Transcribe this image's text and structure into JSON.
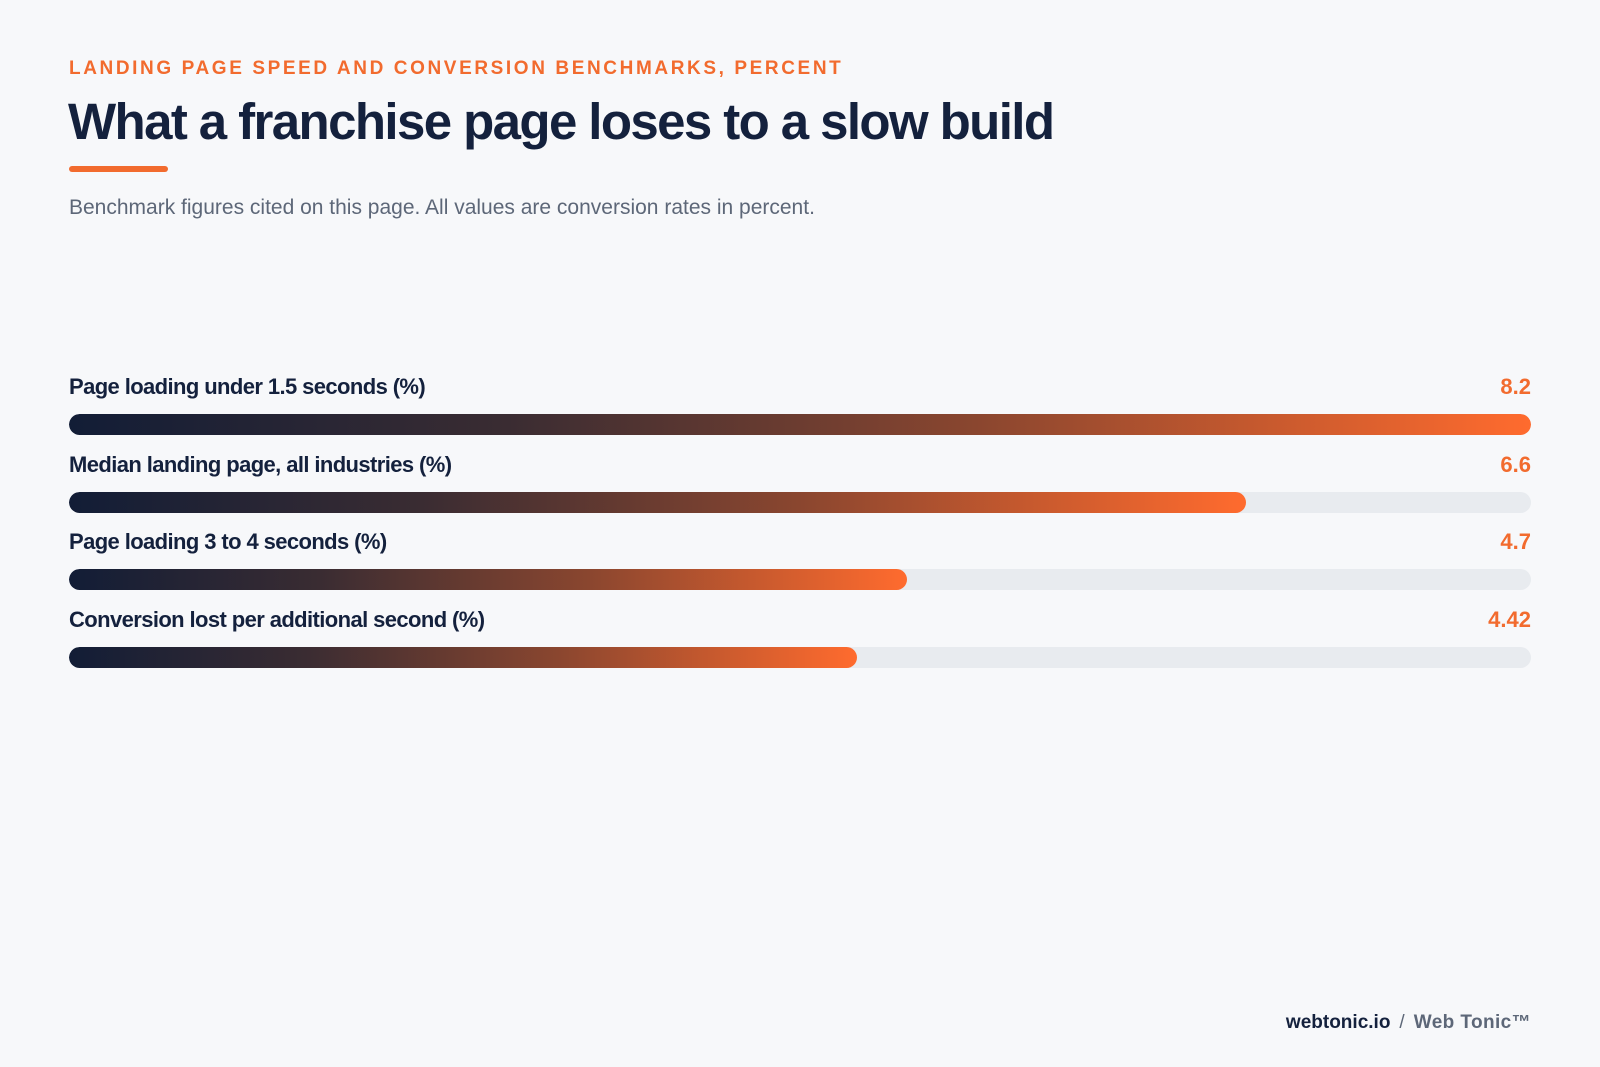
{
  "header": {
    "eyebrow": "LANDING PAGE SPEED AND CONVERSION BENCHMARKS, PERCENT",
    "title": "What a franchise page loses to a slow build",
    "subtitle": "Benchmark figures cited on this page. All values are conversion rates in percent."
  },
  "colors": {
    "accent": "#f26b2e",
    "navy": "#14213d",
    "track": "#e8ebef",
    "gradient_start": "#121d36",
    "gradient_end": "#ff6b2e"
  },
  "chart_data": {
    "type": "bar",
    "orientation": "horizontal",
    "title": "What a franchise page loses to a slow build",
    "categories": [
      "Page loading under 1.5 seconds (%)",
      "Median landing page, all industries (%)",
      "Page loading 3 to 4 seconds (%)",
      "Conversion lost per additional second (%)"
    ],
    "values": [
      8.2,
      6.6,
      4.7,
      4.42
    ],
    "value_labels": [
      "8.2",
      "6.6",
      "4.7",
      "4.42"
    ],
    "xlim": [
      0,
      8.2
    ],
    "grid": false
  },
  "footer": {
    "domain": "webtonic.io",
    "separator": "/",
    "brand": "Web Tonic™"
  }
}
